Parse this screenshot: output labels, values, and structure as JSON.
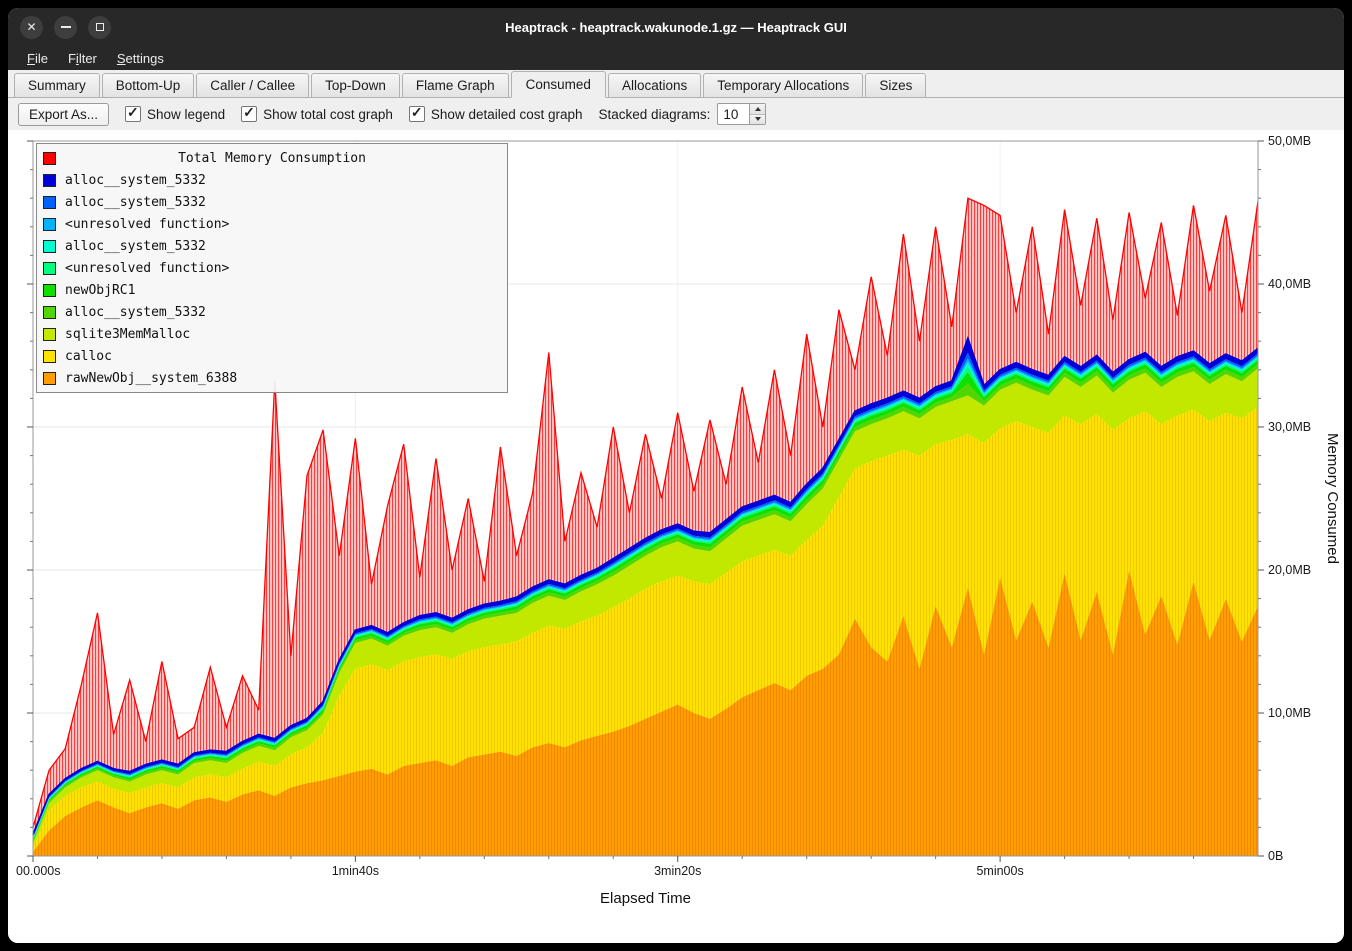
{
  "window": {
    "title": "Heaptrack - heaptrack.wakunode.1.gz — Heaptrack GUI"
  },
  "menubar": {
    "items": [
      {
        "label": "File",
        "underline": 0
      },
      {
        "label": "Filter",
        "underline": 1
      },
      {
        "label": "Settings",
        "underline": 0
      }
    ]
  },
  "tabs": {
    "items": [
      "Summary",
      "Bottom-Up",
      "Caller / Callee",
      "Top-Down",
      "Flame Graph",
      "Consumed",
      "Allocations",
      "Temporary Allocations",
      "Sizes"
    ],
    "active": "Consumed"
  },
  "toolbar": {
    "export_label": "Export As...",
    "checkboxes": [
      {
        "label": "Show legend",
        "checked": true
      },
      {
        "label": "Show total cost graph",
        "checked": true
      },
      {
        "label": "Show detailed cost graph",
        "checked": true
      }
    ],
    "stacked_label": "Stacked diagrams:",
    "stacked_value": "10"
  },
  "chart_data": {
    "type": "area",
    "stacked": true,
    "title": "Total Memory Consumption",
    "xlabel": "Elapsed Time",
    "ylabel": "Memory Consumed",
    "xlim": [
      0,
      380
    ],
    "ylim": [
      0,
      50
    ],
    "x_ticks": [
      {
        "t": 0,
        "label": "00.000s"
      },
      {
        "t": 100,
        "label": "1min40s"
      },
      {
        "t": 200,
        "label": "3min20s"
      },
      {
        "t": 300,
        "label": "5min00s"
      }
    ],
    "y_ticks": [
      {
        "v": 0,
        "label": "0B"
      },
      {
        "v": 10,
        "label": "10,0MB"
      },
      {
        "v": 20,
        "label": "20,0MB"
      },
      {
        "v": 30,
        "label": "30,0MB"
      },
      {
        "v": 40,
        "label": "40,0MB"
      },
      {
        "v": 50,
        "label": "50,0MB"
      }
    ],
    "legend": [
      {
        "label": "alloc__system_5332",
        "color": "#0000d7"
      },
      {
        "label": "alloc__system_5332",
        "color": "#0061ff"
      },
      {
        "label": "<unresolved function>",
        "color": "#00b3ff"
      },
      {
        "label": "alloc__system_5332",
        "color": "#00ffd0"
      },
      {
        "label": "<unresolved function>",
        "color": "#00ff7e"
      },
      {
        "label": "newObjRC1",
        "color": "#0fe000"
      },
      {
        "label": "alloc__system_5332",
        "color": "#52d500"
      },
      {
        "label": "sqlite3MemMalloc",
        "color": "#c3e800"
      },
      {
        "label": "calloc",
        "color": "#ffe200"
      },
      {
        "label": "rawNewObj__system_6388",
        "color": "#ff9e00"
      }
    ],
    "x": [
      0,
      5,
      10,
      15,
      20,
      25,
      30,
      35,
      40,
      45,
      50,
      55,
      60,
      65,
      70,
      75,
      80,
      85,
      90,
      95,
      100,
      105,
      110,
      115,
      120,
      125,
      130,
      135,
      140,
      145,
      150,
      155,
      160,
      165,
      170,
      175,
      180,
      185,
      190,
      195,
      200,
      205,
      210,
      215,
      220,
      225,
      230,
      235,
      240,
      245,
      250,
      255,
      260,
      265,
      270,
      275,
      280,
      285,
      290,
      295,
      300,
      305,
      310,
      315,
      320,
      325,
      330,
      335,
      340,
      345,
      350,
      355,
      360,
      365,
      370,
      375,
      380
    ],
    "layers": [
      {
        "name": "rawNewObj__system_6388",
        "color": "#ff9e00",
        "top": [
          0.3,
          1.8,
          2.8,
          3.4,
          3.9,
          3.4,
          3.0,
          3.4,
          3.7,
          3.3,
          3.9,
          4.1,
          3.8,
          4.3,
          4.6,
          4.2,
          4.8,
          5.1,
          5.3,
          5.6,
          5.9,
          6.1,
          5.7,
          6.3,
          6.5,
          6.7,
          6.3,
          6.9,
          7.1,
          7.3,
          7.0,
          7.6,
          7.9,
          7.6,
          8.1,
          8.4,
          8.7,
          9.1,
          9.6,
          10.1,
          10.6,
          10.0,
          9.6,
          10.3,
          11.1,
          11.6,
          12.1,
          11.6,
          12.6,
          13.1,
          14.1,
          16.6,
          14.6,
          13.6,
          16.8,
          13.1,
          17.5,
          14.6,
          18.8,
          14.1,
          19.5,
          15.1,
          17.8,
          14.6,
          19.8,
          15.1,
          18.5,
          14.1,
          20.0,
          15.5,
          18.2,
          14.8,
          19.2,
          15.1,
          18.0,
          15.0,
          17.5
        ]
      },
      {
        "name": "calloc",
        "color": "#ffe200",
        "top": [
          0.6,
          3.2,
          4.2,
          4.8,
          5.2,
          4.7,
          4.4,
          4.8,
          5.1,
          4.8,
          5.5,
          5.7,
          5.5,
          6.1,
          6.6,
          6.3,
          7.1,
          7.6,
          8.6,
          11.2,
          13.1,
          13.4,
          13.0,
          13.6,
          13.9,
          14.1,
          13.8,
          14.3,
          14.6,
          14.8,
          15.0,
          15.6,
          16.1,
          15.9,
          16.4,
          16.8,
          17.4,
          18.0,
          18.7,
          19.2,
          19.6,
          19.2,
          19.0,
          19.8,
          20.6,
          21.0,
          21.4,
          21.0,
          22.1,
          23.1,
          25.1,
          27.1,
          27.6,
          28.0,
          28.4,
          28.0,
          28.8,
          29.1,
          29.5,
          28.9,
          29.9,
          30.4,
          30.0,
          29.6,
          30.8,
          30.2,
          30.9,
          29.8,
          30.6,
          31.1,
          30.2,
          30.8,
          31.2,
          30.4,
          31.0,
          30.6,
          31.4
        ]
      },
      {
        "name": "sqlite3MemMalloc",
        "color": "#c3e800",
        "top": [
          0.9,
          3.7,
          4.8,
          5.5,
          6.0,
          5.5,
          5.2,
          5.7,
          6.0,
          5.7,
          6.5,
          6.7,
          6.5,
          7.2,
          7.7,
          7.4,
          8.3,
          8.8,
          9.9,
          12.8,
          14.9,
          15.2,
          14.7,
          15.4,
          15.8,
          16.0,
          15.6,
          16.2,
          16.6,
          16.8,
          17.0,
          17.7,
          18.2,
          17.9,
          18.5,
          19.0,
          19.6,
          20.3,
          21.0,
          21.6,
          22.0,
          21.5,
          21.3,
          22.2,
          23.1,
          23.5,
          23.9,
          23.4,
          24.6,
          25.7,
          27.7,
          29.7,
          30.2,
          30.6,
          31.1,
          30.6,
          31.4,
          31.8,
          32.2,
          31.5,
          32.6,
          33.1,
          32.6,
          32.2,
          33.5,
          32.8,
          33.6,
          32.4,
          33.3,
          33.8,
          32.8,
          33.5,
          33.9,
          33.0,
          33.7,
          33.2,
          34.1
        ]
      },
      {
        "name": "alloc__system_5332",
        "color": "#52d500",
        "weight": 2.5
      },
      {
        "name": "newObjRC1",
        "color": "#0fe000",
        "weight": 2.5
      },
      {
        "name": "<unresolved function>",
        "color": "#00ff7e",
        "weight": 1.2
      },
      {
        "name": "alloc__system_5332",
        "color": "#00ffd0",
        "weight": 0.8
      },
      {
        "name": "<unresolved function>",
        "color": "#00b3ff",
        "weight": 0.8
      },
      {
        "name": "alloc__system_5332",
        "color": "#0061ff",
        "weight": 1.2
      },
      {
        "name": "alloc__system_5332",
        "color": "#0000d7",
        "weight": 3,
        "top": [
          1.5,
          4.3,
          5.4,
          6.1,
          6.6,
          6.1,
          5.9,
          6.4,
          6.7,
          6.4,
          7.2,
          7.4,
          7.3,
          8.0,
          8.5,
          8.2,
          9.1,
          9.6,
          10.8,
          13.7,
          15.8,
          16.1,
          15.6,
          16.3,
          16.8,
          17.0,
          16.6,
          17.2,
          17.6,
          17.8,
          18.1,
          18.8,
          19.3,
          19.0,
          19.6,
          20.1,
          20.8,
          21.5,
          22.2,
          22.8,
          23.2,
          22.7,
          22.6,
          23.5,
          24.4,
          24.8,
          25.2,
          24.7,
          26.0,
          27.1,
          29.1,
          31.1,
          31.6,
          32.0,
          32.5,
          32.0,
          32.8,
          33.2,
          36.2,
          32.9,
          34.0,
          34.5,
          34.0,
          33.6,
          34.9,
          34.2,
          35.0,
          33.8,
          34.7,
          35.2,
          34.2,
          34.9,
          35.3,
          34.4,
          35.1,
          34.6,
          35.5
        ]
      }
    ],
    "total": {
      "name": "Total Memory Consumption",
      "color": "#ff0000",
      "values": [
        2.0,
        6.0,
        7.5,
        12.0,
        17.0,
        8.5,
        12.3,
        8.0,
        13.6,
        8.2,
        9.0,
        13.2,
        9.0,
        12.6,
        10.2,
        33.2,
        14.0,
        26.6,
        29.8,
        21.0,
        29.2,
        19.0,
        24.5,
        28.8,
        19.5,
        27.8,
        20.0,
        25.0,
        19.2,
        28.6,
        21.0,
        25.4,
        35.2,
        22.0,
        26.8,
        23.0,
        30.0,
        24.0,
        29.5,
        25.0,
        31.0,
        25.5,
        30.5,
        26.0,
        32.8,
        27.5,
        34.0,
        28.0,
        36.5,
        30.0,
        38.2,
        34.0,
        40.5,
        35.0,
        43.5,
        36.0,
        44.0,
        37.0,
        46.0,
        45.5,
        44.8,
        38.0,
        44.0,
        36.5,
        45.2,
        38.5,
        44.6,
        37.5,
        45.0,
        39.0,
        44.3,
        37.8,
        45.5,
        39.5,
        44.8,
        38.0,
        45.8
      ]
    }
  }
}
